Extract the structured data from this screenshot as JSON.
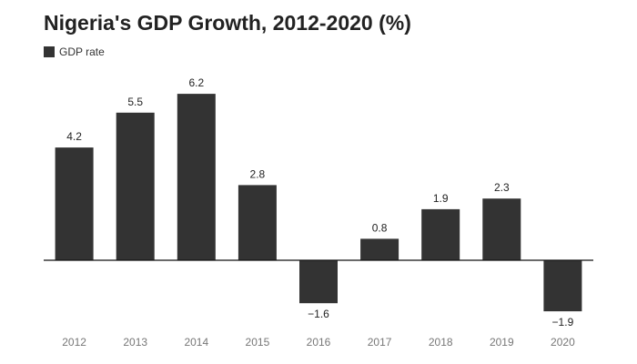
{
  "chart_data": {
    "type": "bar",
    "title": "Nigeria's GDP Growth, 2012-2020 (%)",
    "categories": [
      "2012",
      "2013",
      "2014",
      "2015",
      "2016",
      "2017",
      "2018",
      "2019",
      "2020"
    ],
    "series": [
      {
        "name": "GDP rate",
        "values": [
          4.2,
          5.5,
          6.2,
          2.8,
          -1.6,
          0.8,
          1.9,
          2.3,
          -1.9
        ],
        "labels": [
          "4.2",
          "5.5",
          "6.2",
          "2.8",
          "−1.6",
          "0.8",
          "1.9",
          "2.3",
          "−1.9"
        ],
        "color": "#333333"
      }
    ],
    "xlabel": "",
    "ylabel": "",
    "ylim": [
      -2.5,
      7.5
    ],
    "grid": false,
    "legend": "top-left",
    "zero_line_color": "#111111"
  }
}
